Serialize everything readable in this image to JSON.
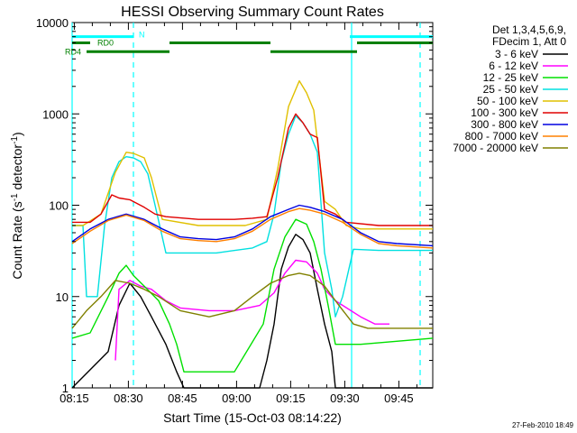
{
  "chart_data": {
    "type": "line",
    "title": "HESSI Observing Summary Count Rates",
    "xlabel": "Start Time (15-Oct-03 08:14:22)",
    "ylabel_main": "Count Rate (s",
    "ylabel_sup1": "-1",
    "ylabel_mid": " detector",
    "ylabel_sup2": "-1",
    "ylabel_end": ")",
    "yscale": "log",
    "ylim": [
      1,
      10000
    ],
    "xlim": [
      0,
      100
    ],
    "x_unit": "minutes after 08:14:22",
    "x_ticks": [
      {
        "x": 0.6,
        "label": "08:15"
      },
      {
        "x": 15.6,
        "label": "08:30"
      },
      {
        "x": 30.6,
        "label": "08:45"
      },
      {
        "x": 45.6,
        "label": "09:00"
      },
      {
        "x": 60.6,
        "label": "09:15"
      },
      {
        "x": 75.6,
        "label": "09:30"
      },
      {
        "x": 90.6,
        "label": "09:45"
      }
    ],
    "y_ticks": [
      {
        "y": 1,
        "label": "1"
      },
      {
        "y": 10,
        "label": "10"
      },
      {
        "y": 100,
        "label": "100"
      },
      {
        "y": 1000,
        "label": "1000"
      },
      {
        "y": 10000,
        "label": "10000"
      }
    ],
    "legend_header": [
      "Det 1,3,4,5,6,9,",
      "FDecim 1, Att 0"
    ],
    "legend_position": "right",
    "series": [
      {
        "name": "3 - 6 keV",
        "color": "#000000",
        "points": [
          [
            0,
            1
          ],
          [
            10,
            2.5
          ],
          [
            13,
            8
          ],
          [
            16,
            14
          ],
          [
            19,
            10
          ],
          [
            22,
            6
          ],
          [
            26,
            3
          ],
          [
            29,
            1.5
          ],
          [
            31,
            1
          ],
          [
            45,
            1
          ],
          [
            52,
            1
          ],
          [
            54,
            2
          ],
          [
            56,
            5
          ],
          [
            58,
            20
          ],
          [
            60,
            35
          ],
          [
            62,
            48
          ],
          [
            64,
            42
          ],
          [
            66,
            30
          ],
          [
            68,
            12
          ],
          [
            70,
            5
          ],
          [
            72,
            2.5
          ],
          [
            73,
            1
          ],
          [
            80,
            1
          ],
          [
            100,
            1
          ]
        ]
      },
      {
        "name": "6 - 12 keV",
        "color": "#ff00ff",
        "points": [
          [
            12,
            2
          ],
          [
            13,
            12
          ],
          [
            16,
            15
          ],
          [
            19,
            13
          ],
          [
            22,
            12
          ],
          [
            26,
            9
          ],
          [
            30,
            7.5
          ],
          [
            38,
            7
          ],
          [
            45,
            7
          ],
          [
            52,
            8
          ],
          [
            56,
            11
          ],
          [
            59,
            18
          ],
          [
            62,
            25
          ],
          [
            65,
            24
          ],
          [
            68,
            18
          ],
          [
            70,
            12
          ],
          [
            73,
            9
          ],
          [
            80,
            6
          ],
          [
            84,
            5
          ],
          [
            88,
            5
          ]
        ]
      },
      {
        "name": "12 - 25 keV",
        "color": "#00e000",
        "points": [
          [
            0,
            3.5
          ],
          [
            5,
            4
          ],
          [
            10,
            10
          ],
          [
            13,
            18
          ],
          [
            15,
            22
          ],
          [
            17,
            17
          ],
          [
            20,
            13
          ],
          [
            24,
            9
          ],
          [
            27,
            5
          ],
          [
            29,
            3
          ],
          [
            31,
            1.5
          ],
          [
            45,
            1.5
          ],
          [
            53,
            5
          ],
          [
            56,
            20
          ],
          [
            59,
            45
          ],
          [
            62,
            70
          ],
          [
            65,
            62
          ],
          [
            67,
            40
          ],
          [
            69,
            20
          ],
          [
            71,
            8
          ],
          [
            73,
            3
          ],
          [
            80,
            3
          ],
          [
            100,
            3.5
          ]
        ]
      },
      {
        "name": "25 - 50 keV",
        "color": "#00e0e0",
        "points": [
          [
            0,
            60
          ],
          [
            3,
            60
          ],
          [
            4,
            10
          ],
          [
            7,
            10
          ],
          [
            9,
            60
          ],
          [
            11,
            200
          ],
          [
            13,
            300
          ],
          [
            15,
            340
          ],
          [
            17,
            330
          ],
          [
            19,
            300
          ],
          [
            21,
            220
          ],
          [
            23,
            100
          ],
          [
            26,
            30
          ],
          [
            30,
            30
          ],
          [
            40,
            30
          ],
          [
            50,
            34
          ],
          [
            54,
            40
          ],
          [
            56,
            80
          ],
          [
            58,
            300
          ],
          [
            60,
            600
          ],
          [
            62,
            950
          ],
          [
            64,
            800
          ],
          [
            66,
            600
          ],
          [
            68,
            380
          ],
          [
            70,
            30
          ],
          [
            72,
            12
          ],
          [
            73,
            6
          ],
          [
            75,
            10
          ],
          [
            78,
            33
          ],
          [
            85,
            32
          ],
          [
            90,
            32
          ],
          [
            100,
            32
          ]
        ]
      },
      {
        "name": "50 - 100 keV",
        "color": "#e0c000",
        "points": [
          [
            0,
            60
          ],
          [
            3,
            60
          ],
          [
            8,
            80
          ],
          [
            12,
            230
          ],
          [
            15,
            380
          ],
          [
            17,
            370
          ],
          [
            20,
            330
          ],
          [
            22,
            200
          ],
          [
            25,
            70
          ],
          [
            35,
            60
          ],
          [
            48,
            60
          ],
          [
            54,
            70
          ],
          [
            57,
            250
          ],
          [
            60,
            1200
          ],
          [
            63,
            2300
          ],
          [
            65,
            1700
          ],
          [
            67,
            1100
          ],
          [
            70,
            110
          ],
          [
            73,
            90
          ],
          [
            76,
            60
          ],
          [
            80,
            55
          ],
          [
            100,
            55
          ]
        ]
      },
      {
        "name": "100 - 300 keV",
        "color": "#e00000",
        "points": [
          [
            0,
            65
          ],
          [
            5,
            65
          ],
          [
            8,
            80
          ],
          [
            11,
            130
          ],
          [
            13,
            120
          ],
          [
            16,
            115
          ],
          [
            20,
            95
          ],
          [
            23,
            80
          ],
          [
            26,
            75
          ],
          [
            35,
            70
          ],
          [
            45,
            70
          ],
          [
            50,
            72
          ],
          [
            54,
            75
          ],
          [
            57,
            200
          ],
          [
            60,
            700
          ],
          [
            62,
            1000
          ],
          [
            64,
            800
          ],
          [
            66,
            600
          ],
          [
            68,
            550
          ],
          [
            70,
            90
          ],
          [
            73,
            80
          ],
          [
            76,
            65
          ],
          [
            85,
            60
          ],
          [
            100,
            60
          ]
        ]
      },
      {
        "name": "300 - 800 keV",
        "color": "#0000e0",
        "points": [
          [
            0,
            40
          ],
          [
            5,
            55
          ],
          [
            10,
            70
          ],
          [
            15,
            80
          ],
          [
            20,
            70
          ],
          [
            25,
            55
          ],
          [
            30,
            45
          ],
          [
            35,
            43
          ],
          [
            40,
            42
          ],
          [
            45,
            45
          ],
          [
            50,
            55
          ],
          [
            55,
            75
          ],
          [
            60,
            90
          ],
          [
            63,
            100
          ],
          [
            66,
            95
          ],
          [
            70,
            85
          ],
          [
            75,
            70
          ],
          [
            80,
            50
          ],
          [
            85,
            40
          ],
          [
            90,
            38
          ],
          [
            100,
            36
          ]
        ]
      },
      {
        "name": "800 - 7000 keV",
        "color": "#ff8000",
        "points": [
          [
            0,
            38
          ],
          [
            5,
            52
          ],
          [
            10,
            68
          ],
          [
            15,
            78
          ],
          [
            20,
            68
          ],
          [
            25,
            52
          ],
          [
            30,
            43
          ],
          [
            35,
            41
          ],
          [
            40,
            40
          ],
          [
            45,
            43
          ],
          [
            50,
            52
          ],
          [
            55,
            70
          ],
          [
            60,
            85
          ],
          [
            63,
            92
          ],
          [
            66,
            88
          ],
          [
            70,
            80
          ],
          [
            75,
            65
          ],
          [
            80,
            48
          ],
          [
            85,
            38
          ],
          [
            90,
            36
          ],
          [
            100,
            34
          ]
        ]
      },
      {
        "name": "7000 - 20000 keV",
        "color": "#808000",
        "points": [
          [
            0,
            4.5
          ],
          [
            4,
            7
          ],
          [
            8,
            10
          ],
          [
            12,
            15
          ],
          [
            16,
            14
          ],
          [
            20,
            12
          ],
          [
            24,
            10
          ],
          [
            30,
            7
          ],
          [
            38,
            6
          ],
          [
            45,
            7
          ],
          [
            50,
            10
          ],
          [
            55,
            14
          ],
          [
            60,
            17
          ],
          [
            63,
            18
          ],
          [
            66,
            17
          ],
          [
            70,
            13
          ],
          [
            74,
            8
          ],
          [
            78,
            5
          ],
          [
            82,
            4.5
          ],
          [
            100,
            4.5
          ]
        ]
      }
    ],
    "flag_bars": [
      {
        "label": "N",
        "color": "#00ffff",
        "y": 7000,
        "segments": [
          [
            0,
            17
          ],
          [
            77,
            100
          ]
        ]
      },
      {
        "label": "RD0",
        "color": "#008000",
        "y": 6000,
        "segments": [
          [
            0,
            5
          ],
          [
            27,
            55
          ],
          [
            79,
            100
          ]
        ]
      },
      {
        "label": "RD4",
        "color": "#008000",
        "y": 4800,
        "segments": [
          [
            4,
            27
          ],
          [
            55,
            79
          ]
        ]
      }
    ],
    "solid_verticals": [
      {
        "x": 0,
        "color": "#00ffff"
      },
      {
        "x": 77.5,
        "color": "#00ffff"
      }
    ],
    "dashed_verticals": [
      {
        "x": 17,
        "color": "#00ffff"
      },
      {
        "x": 96.5,
        "color": "#00ffff"
      }
    ],
    "timestamp": "27-Feb-2010 18:49"
  }
}
